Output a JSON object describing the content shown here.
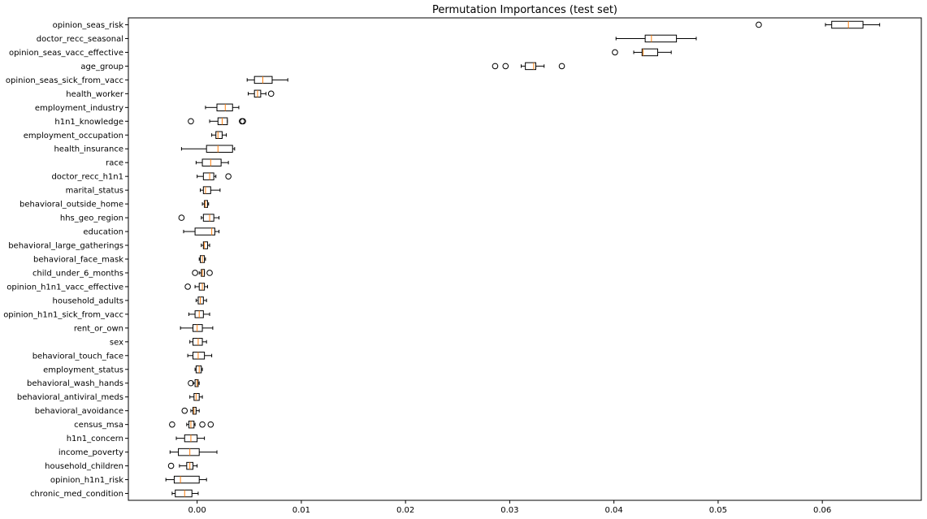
{
  "chart_data": {
    "type": "boxplot",
    "orientation": "horizontal",
    "title": "Permutation Importances (test set)",
    "xlabel": "",
    "ylabel": "",
    "xlim": [
      -0.0066,
      0.0695
    ],
    "xticks": [
      0.0,
      0.01,
      0.02,
      0.03,
      0.04,
      0.05,
      0.06
    ],
    "xtick_labels": [
      "0.00",
      "0.01",
      "0.02",
      "0.03",
      "0.04",
      "0.05",
      "0.06"
    ],
    "grid": false,
    "features": [
      {
        "name": "opinion_seas_risk",
        "wlo": 0.0603,
        "q1": 0.0609,
        "med": 0.0625,
        "q3": 0.0639,
        "whi": 0.0655,
        "fliers": [
          0.0539
        ]
      },
      {
        "name": "doctor_recc_seasonal",
        "wlo": 0.0402,
        "q1": 0.043,
        "med": 0.0436,
        "q3": 0.046,
        "whi": 0.0479,
        "fliers": []
      },
      {
        "name": "opinion_seas_vacc_effective",
        "wlo": 0.0419,
        "q1": 0.0427,
        "med": 0.0428,
        "q3": 0.0442,
        "whi": 0.0455,
        "fliers": [
          0.0401
        ]
      },
      {
        "name": "age_group",
        "wlo": 0.0311,
        "q1": 0.0315,
        "med": 0.0323,
        "q3": 0.0325,
        "whi": 0.0333,
        "fliers": [
          0.0286,
          0.0296,
          0.035
        ]
      },
      {
        "name": "opinion_seas_sick_from_vacc",
        "wlo": 0.0048,
        "q1": 0.0055,
        "med": 0.0063,
        "q3": 0.0072,
        "whi": 0.0087,
        "fliers": []
      },
      {
        "name": "health_worker",
        "wlo": 0.0049,
        "q1": 0.0055,
        "med": 0.0058,
        "q3": 0.0061,
        "whi": 0.0066,
        "fliers": [
          0.0071
        ]
      },
      {
        "name": "employment_industry",
        "wlo": 0.0008,
        "q1": 0.0019,
        "med": 0.0027,
        "q3": 0.0034,
        "whi": 0.004,
        "fliers": []
      },
      {
        "name": "h1n1_knowledge",
        "wlo": 0.0012,
        "q1": 0.002,
        "med": 0.0024,
        "q3": 0.0029,
        "whi": 0.0029,
        "fliers": [
          -0.0006,
          0.0043,
          0.0044
        ]
      },
      {
        "name": "employment_occupation",
        "wlo": 0.0014,
        "q1": 0.0018,
        "med": 0.002,
        "q3": 0.0024,
        "whi": 0.0028,
        "fliers": []
      },
      {
        "name": "health_insurance",
        "wlo": -0.0015,
        "q1": 0.0009,
        "med": 0.002,
        "q3": 0.0034,
        "whi": 0.0036,
        "fliers": []
      },
      {
        "name": "race",
        "wlo": -0.0001,
        "q1": 0.0005,
        "med": 0.0013,
        "q3": 0.0023,
        "whi": 0.003,
        "fliers": []
      },
      {
        "name": "doctor_recc_h1n1",
        "wlo": 0.0,
        "q1": 0.0006,
        "med": 0.0012,
        "q3": 0.0016,
        "whi": 0.0018,
        "fliers": [
          0.003
        ]
      },
      {
        "name": "marital_status",
        "wlo": 0.0003,
        "q1": 0.0006,
        "med": 0.0008,
        "q3": 0.0013,
        "whi": 0.0022,
        "fliers": []
      },
      {
        "name": "behavioral_outside_home",
        "wlo": 0.0005,
        "q1": 0.0007,
        "med": 0.0008,
        "q3": 0.001,
        "whi": 0.0011,
        "fliers": []
      },
      {
        "name": "hhs_geo_region",
        "wlo": 0.0004,
        "q1": 0.0006,
        "med": 0.0012,
        "q3": 0.0016,
        "whi": 0.0021,
        "fliers": [
          -0.0015
        ]
      },
      {
        "name": "education",
        "wlo": -0.0013,
        "q1": -0.0002,
        "med": 0.0014,
        "q3": 0.0017,
        "whi": 0.0021,
        "fliers": []
      },
      {
        "name": "behavioral_large_gatherings",
        "wlo": 0.0004,
        "q1": 0.0006,
        "med": 0.0007,
        "q3": 0.001,
        "whi": 0.0012,
        "fliers": []
      },
      {
        "name": "behavioral_face_mask",
        "wlo": 0.0002,
        "q1": 0.0003,
        "med": 0.0005,
        "q3": 0.0007,
        "whi": 0.0008,
        "fliers": []
      },
      {
        "name": "child_under_6_months",
        "wlo": 0.0002,
        "q1": 0.0004,
        "med": 0.0005,
        "q3": 0.0007,
        "whi": 0.0007,
        "fliers": [
          -0.0002,
          0.0012
        ]
      },
      {
        "name": "opinion_h1n1_vacc_effective",
        "wlo": -0.0002,
        "q1": 0.0002,
        "med": 0.0005,
        "q3": 0.0007,
        "whi": 0.001,
        "fliers": [
          -0.0009
        ]
      },
      {
        "name": "household_adults",
        "wlo": -0.0001,
        "q1": 0.0001,
        "med": 0.0003,
        "q3": 0.0006,
        "whi": 0.0009,
        "fliers": []
      },
      {
        "name": "opinion_h1n1_sick_from_vacc",
        "wlo": -0.0008,
        "q1": -0.0002,
        "med": 0.0002,
        "q3": 0.0006,
        "whi": 0.0012,
        "fliers": []
      },
      {
        "name": "rent_or_own",
        "wlo": -0.0016,
        "q1": -0.0004,
        "med": 0.0,
        "q3": 0.0005,
        "whi": 0.0015,
        "fliers": []
      },
      {
        "name": "sex",
        "wlo": -0.0007,
        "q1": -0.0004,
        "med": 0.0001,
        "q3": 0.0005,
        "whi": 0.0009,
        "fliers": []
      },
      {
        "name": "behavioral_touch_face",
        "wlo": -0.0009,
        "q1": -0.0004,
        "med": 0.0001,
        "q3": 0.0007,
        "whi": 0.0014,
        "fliers": []
      },
      {
        "name": "employment_status",
        "wlo": -0.0002,
        "q1": -0.0001,
        "med": 0.0002,
        "q3": 0.0004,
        "whi": 0.0005,
        "fliers": []
      },
      {
        "name": "behavioral_wash_hands",
        "wlo": -0.0004,
        "q1": -0.0002,
        "med": 0.0,
        "q3": 0.0001,
        "whi": 0.0002,
        "fliers": [
          -0.0006
        ]
      },
      {
        "name": "behavioral_antiviral_meds",
        "wlo": -0.0007,
        "q1": -0.0003,
        "med": -0.0001,
        "q3": 0.0002,
        "whi": 0.0005,
        "fliers": []
      },
      {
        "name": "behavioral_avoidance",
        "wlo": -0.0006,
        "q1": -0.0004,
        "med": -0.0003,
        "q3": -0.0001,
        "whi": 0.0002,
        "fliers": [
          -0.0012
        ]
      },
      {
        "name": "census_msa",
        "wlo": -0.001,
        "q1": -0.0008,
        "med": -0.0006,
        "q3": -0.0003,
        "whi": -0.0002,
        "fliers": [
          -0.0024,
          0.0005,
          0.0013
        ]
      },
      {
        "name": "h1n1_concern",
        "wlo": -0.002,
        "q1": -0.0012,
        "med": -0.0006,
        "q3": 0.0,
        "whi": 0.0007,
        "fliers": []
      },
      {
        "name": "income_poverty",
        "wlo": -0.0026,
        "q1": -0.0018,
        "med": -0.0007,
        "q3": 0.0002,
        "whi": 0.0019,
        "fliers": []
      },
      {
        "name": "household_children",
        "wlo": -0.0017,
        "q1": -0.001,
        "med": -0.0007,
        "q3": -0.0004,
        "whi": 0.0,
        "fliers": [
          -0.0025
        ]
      },
      {
        "name": "opinion_h1n1_risk",
        "wlo": -0.003,
        "q1": -0.0022,
        "med": -0.0016,
        "q3": 0.0002,
        "whi": 0.0009,
        "fliers": []
      },
      {
        "name": "chronic_med_condition",
        "wlo": -0.0024,
        "q1": -0.0021,
        "med": -0.0012,
        "q3": -0.0005,
        "whi": 0.0001,
        "fliers": []
      }
    ]
  }
}
